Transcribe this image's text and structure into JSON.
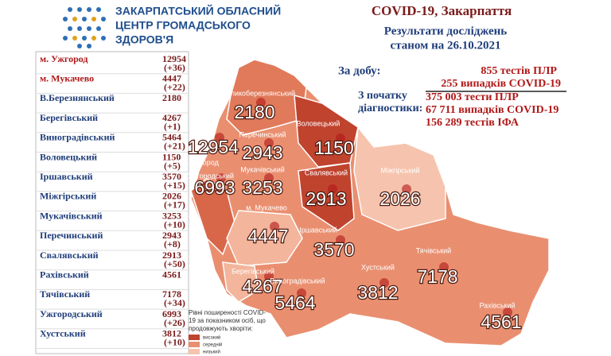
{
  "header": {
    "org": [
      "ЗАКАРПАТСЬКИЙ ОБЛАСНИЙ",
      "ЦЕНТР ГРОМАДСЬКОГО",
      "ЗДОРОВ'Я"
    ],
    "title": "COVID-19, Закарпаття",
    "subtitle": [
      "Результати досліджень",
      "станом на 26.10.2021"
    ]
  },
  "table": {
    "rows": [
      {
        "name": "м. Ужгород",
        "total": 12954,
        "delta": "(+36)"
      },
      {
        "name": "м. Мукачево",
        "total": 4447,
        "delta": "(+22)"
      },
      {
        "name": "В.Березнянський",
        "total": 2180,
        "delta": null
      },
      {
        "name": "Берегівський",
        "total": 4267,
        "delta": "(+1)"
      },
      {
        "name": "Виноградівський",
        "total": 5464,
        "delta": "(+21)"
      },
      {
        "name": "Воловецький",
        "total": 1150,
        "delta": "(+5)"
      },
      {
        "name": "Іршавський",
        "total": 3570,
        "delta": "(+15)"
      },
      {
        "name": "Міжгірський",
        "total": 2026,
        "delta": "(+17)"
      },
      {
        "name": "Мукачівський",
        "total": 3253,
        "delta": "(+10)"
      },
      {
        "name": "Перечинський",
        "total": 2943,
        "delta": "(+8)"
      },
      {
        "name": "Свалявський",
        "total": 2913,
        "delta": "(+50)"
      },
      {
        "name": "Рахівський",
        "total": 4561,
        "delta": null
      },
      {
        "name": "Тячівський",
        "total": 7178,
        "delta": "(+34)"
      },
      {
        "name": "Ужгородський",
        "total": 6993,
        "delta": "(+26)"
      },
      {
        "name": "Хустський",
        "total": 3812,
        "delta": "(+10)"
      }
    ]
  },
  "stats": {
    "daily_label": "За добу:",
    "daily": [
      "855 тестів ПЛР",
      "255 випадків COVID-19"
    ],
    "since_label": [
      "З початку",
      "діагностики:"
    ],
    "since": [
      "375 003 тести ПЛР",
      "67 711 випадків COVID-19",
      "156 289 тестів ІФА"
    ]
  },
  "map": {
    "labels": [
      "м. Ужгород",
      "м. Мукачево",
      "Великоберезнянський",
      "Берегівський",
      "Виноградівський",
      "Воловецький",
      "Іршавський",
      "Міжгірський",
      "Мукачівський",
      "Перечинський",
      "Свалявський",
      "Рахівський",
      "Тячівський",
      "Ужгородський",
      "Хустський"
    ],
    "legend": {
      "title": [
        "Рівні поширеності COVID-",
        "19 за показником осіб, що",
        "продовжують хворіти:"
      ],
      "items": [
        "високий",
        "середній",
        "низький"
      ]
    }
  }
}
